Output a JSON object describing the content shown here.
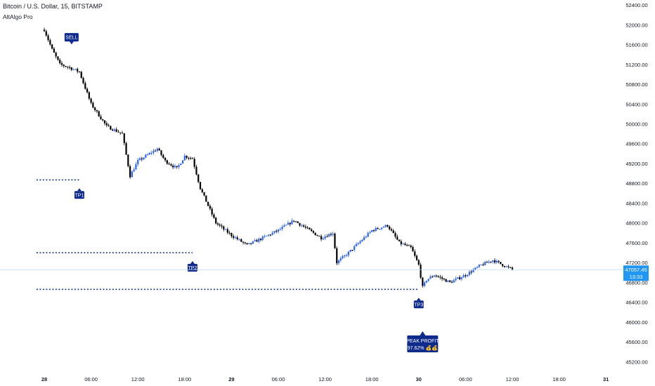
{
  "header": {
    "symbol_title": "Bitcoin / U.S. Dollar, 15, BITSTAMP",
    "indicator_name": "AltAlgo Pro"
  },
  "colors": {
    "up_candle": "#2962ff",
    "down_candle": "#000000",
    "target_line": "#1e3a8a",
    "label_bg": "#0d2a8c",
    "label_text": "#ffffff",
    "last_price_bg": "#2196f3",
    "last_price_line": "#b7d8f5",
    "axis_text": "#131722"
  },
  "chart_data": {
    "type": "candlestick",
    "title": "Bitcoin / U.S. Dollar, 15, BITSTAMP",
    "indicator": "AltAlgo Pro",
    "ylim": [
      44950,
      52500
    ],
    "x_ticks": [
      "28",
      "06:00",
      "12:00",
      "18:00",
      "29",
      "06:00",
      "12:00",
      "18:00",
      "30",
      "06:00",
      "12:00",
      "18:00",
      "31"
    ],
    "y_ticks": [
      "52400.00",
      "52000.00",
      "51600.00",
      "51200.00",
      "50800.00",
      "50400.00",
      "50000.00",
      "49600.00",
      "49200.00",
      "48800.00",
      "48400.00",
      "48000.00",
      "47600.00",
      "47200.00",
      "46800.00",
      "46400.00",
      "46000.00",
      "45600.00",
      "45200.00"
    ],
    "path_hours": [
      0,
      1,
      2,
      3,
      4.5,
      6,
      8,
      10,
      11,
      12,
      13,
      14.5,
      15.5,
      17,
      18,
      19,
      20,
      22,
      24,
      26,
      28,
      30,
      32,
      34,
      35.5,
      37,
      37.5,
      39,
      40,
      42,
      44,
      45.5,
      47,
      48,
      48.5,
      49,
      50,
      52,
      54,
      56,
      57.5,
      60
    ],
    "path_close": [
      51900,
      51500,
      51200,
      51150,
      51050,
      50400,
      49950,
      49800,
      48950,
      49250,
      49350,
      49500,
      49250,
      49100,
      49350,
      49300,
      48700,
      48000,
      47750,
      47550,
      47700,
      47850,
      48050,
      47850,
      47700,
      47800,
      47200,
      47400,
      47550,
      47850,
      47950,
      47600,
      47500,
      47150,
      46700,
      46850,
      46950,
      46800,
      46950,
      47150,
      47250,
      47057.45
    ],
    "last_price": "47057.45",
    "countdown": "13:33",
    "signals": {
      "sell": {
        "label": "SELL",
        "hour": 3.5,
        "price": 51520
      },
      "tp1": {
        "label": "TP1",
        "price": 48870,
        "line_from_hour": -1,
        "line_to_hour": 4.5,
        "label_hour": 4.5
      },
      "tp2": {
        "label": "TP2",
        "price": 47400,
        "line_from_hour": -1,
        "line_to_hour": 19,
        "label_hour": 19
      },
      "tp3": {
        "label": "TP3",
        "price": 46660,
        "line_from_hour": -1,
        "line_to_hour": 48,
        "label_hour": 48
      },
      "peak_profit": {
        "line1": "PEAK PROFIT",
        "line2": "97.62% 💰💰",
        "hour": 48.5
      }
    }
  }
}
